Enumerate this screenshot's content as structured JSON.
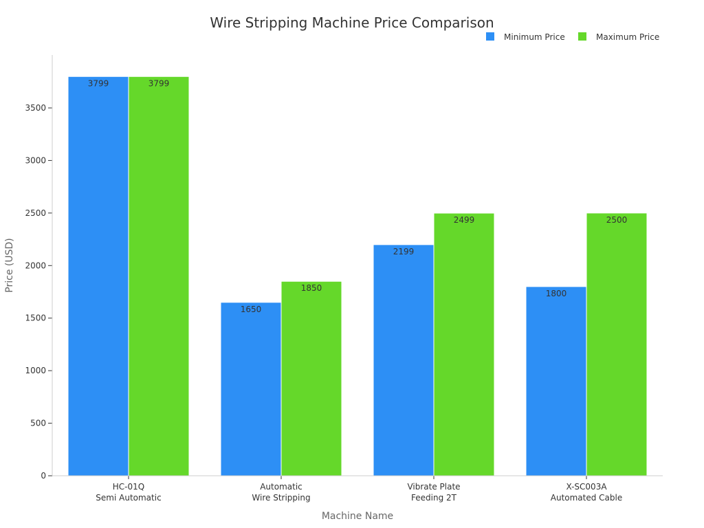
{
  "chart_data": {
    "type": "bar",
    "title": "Wire Stripping Machine Price Comparison",
    "xlabel": "Machine Name",
    "ylabel": "Price (USD)",
    "categories": [
      [
        "HC-01Q",
        "Semi Automatic"
      ],
      [
        "Automatic",
        "Wire Stripping"
      ],
      [
        "Vibrate Plate",
        "Feeding 2T"
      ],
      [
        "X-SC003A",
        "Automated Cable"
      ]
    ],
    "series": [
      {
        "name": "Minimum Price",
        "color": "#2d8ff5",
        "values": [
          3799,
          1650,
          2199,
          1800
        ]
      },
      {
        "name": "Maximum Price",
        "color": "#65d82a",
        "values": [
          3799,
          1850,
          2499,
          2500
        ]
      }
    ],
    "ylim": [
      0,
      4000
    ],
    "yticks": [
      0,
      500,
      1000,
      1500,
      2000,
      2500,
      3000,
      3500
    ],
    "legend_position": "top-right",
    "grid": false,
    "data_labels": true
  }
}
